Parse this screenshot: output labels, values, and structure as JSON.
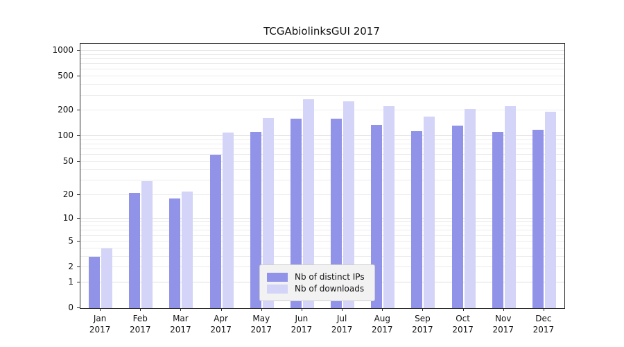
{
  "title": "TCGAbiolinksGUI 2017",
  "chart_data": {
    "type": "bar",
    "scale": "symlog",
    "title": "TCGAbiolinksGUI 2017",
    "xlabel": "",
    "ylabel": "",
    "categories": [
      "Jan",
      "Feb",
      "Mar",
      "Apr",
      "May",
      "Jun",
      "Jul",
      "Aug",
      "Sep",
      "Oct",
      "Nov",
      "Dec"
    ],
    "category_year": "2017",
    "series": [
      {
        "name": "Nb of distinct IPs",
        "color": "#9193e8",
        "values": [
          3,
          21,
          18,
          60,
          112,
          160,
          160,
          135,
          115,
          132,
          112,
          118
        ]
      },
      {
        "name": "Nb of downloads",
        "color": "#d3d4f7",
        "values": [
          4,
          29,
          22,
          110,
          165,
          270,
          255,
          225,
          170,
          210,
          225,
          195
        ]
      }
    ],
    "yticks": [
      0,
      1,
      2,
      5,
      10,
      20,
      50,
      100,
      200,
      500,
      1000
    ],
    "ylim": [
      0,
      1100
    ],
    "grid": true,
    "legend_position": "lower center"
  }
}
